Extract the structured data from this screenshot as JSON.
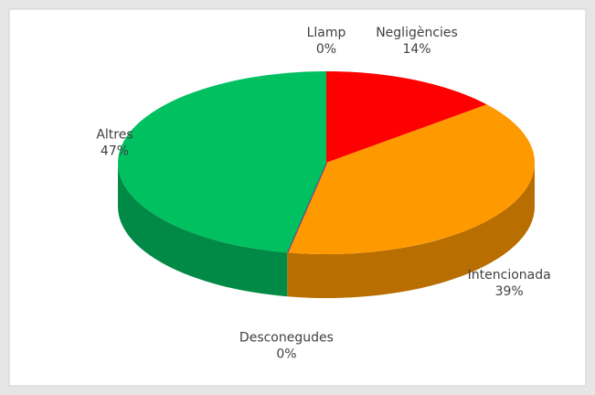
{
  "chart_data": {
    "type": "pie3d",
    "categories": [
      "Llamp",
      "Negligències",
      "Intencionada",
      "Desconegudes",
      "Altres"
    ],
    "values": [
      0,
      14,
      39,
      0,
      47
    ],
    "value_labels": [
      "0%",
      "14%",
      "39%",
      "0%",
      "47%"
    ],
    "colors": [
      "#7030a0",
      "#ff0000",
      "#ff9900",
      "#7030a0",
      "#00c060"
    ]
  }
}
